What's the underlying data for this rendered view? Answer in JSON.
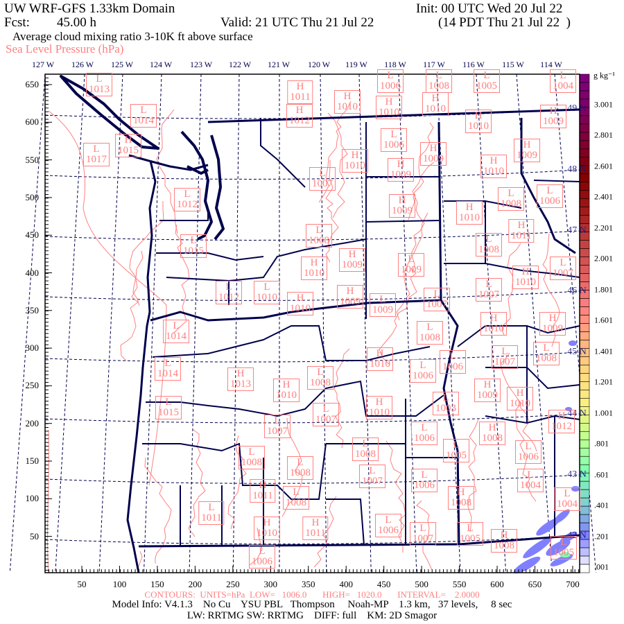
{
  "header": {
    "title": "UW WRF-GFS 1.33km Domain",
    "init": "Init: 00 UTC Wed 20 Jul 22",
    "fcst_label": "Fcst:",
    "fcst_value": "45.00 h",
    "valid": "Valid: 21 UTC Thu 21 Jul 22",
    "local_time": "(14 PDT Thu 21 Jul 22  )",
    "field": "Average cloud mixing ratio 3-10K ft above surface",
    "overlay": "Sea Level Pressure (hPa)"
  },
  "lon_labels": [
    "127 W",
    "126 W",
    "125 W",
    "124 W",
    "123 W",
    "122 W",
    "121 W",
    "120 W",
    "119 W",
    "118 W",
    "117 W",
    "116 W",
    "115 W",
    "114 W"
  ],
  "lat_labels": [
    "49 N",
    "48 N",
    "47 N",
    "46 N",
    "45 N",
    "44 N",
    "43 N",
    "42 N"
  ],
  "x_ticks": [
    "50",
    "100",
    "150",
    "200",
    "250",
    "300",
    "350",
    "400",
    "450",
    "500",
    "550",
    "600",
    "650",
    "700"
  ],
  "y_ticks": [
    "650",
    "600",
    "550",
    "500",
    "450",
    "400",
    "350",
    "300",
    "250",
    "200",
    "150",
    "100",
    "50"
  ],
  "colorbar": {
    "units": "g kg⁻¹",
    "labels": [
      "3.001",
      "2.801",
      "2.601",
      "2.401",
      "2.201",
      "2.001",
      "1.801",
      "1.601",
      "1.401",
      "1.201",
      "1.001",
      ".801",
      ".601",
      ".401",
      ".201",
      ".001"
    ],
    "colors": [
      "#7f007f",
      "#7f0060",
      "#800030",
      "#800000",
      "#a01818",
      "#c04040",
      "#e06060",
      "#ff8080",
      "#ffb080",
      "#ffd880",
      "#f8f080",
      "#c0ff90",
      "#80ffb0",
      "#80d0d0",
      "#8080ff",
      "#ffffff"
    ]
  },
  "precip_color": "#8080ff",
  "contour_color": "#ff7f7f",
  "border_color": "#00004d",
  "pressure_centers": [
    {
      "type": "L",
      "value": "1013"
    },
    {
      "type": "L",
      "value": "1014"
    },
    {
      "type": "H",
      "value": "1015"
    },
    {
      "type": "L",
      "value": "1017"
    },
    {
      "type": "L",
      "value": "1012"
    },
    {
      "type": "L",
      "value": "1015"
    },
    {
      "type": "L",
      "value": "1012"
    },
    {
      "type": "L",
      "value": "1010"
    },
    {
      "type": "H",
      "value": "1010"
    },
    {
      "type": "H",
      "value": "1011"
    },
    {
      "type": "H",
      "value": "1012"
    },
    {
      "type": "H",
      "value": "1010"
    },
    {
      "type": "H",
      "value": "1010"
    },
    {
      "type": "H",
      "value": "1010"
    },
    {
      "type": "L",
      "value": "1005"
    },
    {
      "type": "L",
      "value": "1004"
    },
    {
      "type": "L",
      "value": "1006"
    },
    {
      "type": "L",
      "value": "1008"
    },
    {
      "type": "H",
      "value": "1010"
    },
    {
      "type": "H",
      "value": "1009"
    },
    {
      "type": "L",
      "value": "1006"
    },
    {
      "type": "H",
      "value": "1009"
    },
    {
      "type": "H",
      "value": "1009"
    },
    {
      "type": "H",
      "value": "1010"
    },
    {
      "type": "H",
      "value": "1009"
    },
    {
      "type": "H",
      "value": "1010"
    },
    {
      "type": "L",
      "value": "1007"
    },
    {
      "type": "L",
      "value": "1006"
    },
    {
      "type": "L",
      "value": "1008"
    },
    {
      "type": "H",
      "value": "1009"
    },
    {
      "type": "H",
      "value": "1010"
    },
    {
      "type": "H",
      "value": "1011"
    },
    {
      "type": "L",
      "value": "1008"
    },
    {
      "type": "L",
      "value": "1008"
    },
    {
      "type": "H",
      "value": "1009"
    },
    {
      "type": "L",
      "value": "1009"
    },
    {
      "type": "H",
      "value": "1010"
    },
    {
      "type": "L",
      "value": "1007"
    },
    {
      "type": "H",
      "value": "1010"
    },
    {
      "type": "L",
      "value": "1007"
    },
    {
      "type": "H",
      "value": "1009"
    },
    {
      "type": "L",
      "value": "1009"
    },
    {
      "type": "L",
      "value": "1007"
    },
    {
      "type": "L",
      "value": "1014"
    },
    {
      "type": "L",
      "value": "1014"
    },
    {
      "type": "H",
      "value": "1013"
    },
    {
      "type": "H",
      "value": "1010"
    },
    {
      "type": "L",
      "value": "1015"
    },
    {
      "type": "L",
      "value": "1007"
    },
    {
      "type": "L",
      "value": "1008"
    },
    {
      "type": "L",
      "value": "1008"
    },
    {
      "type": "H",
      "value": "1011"
    },
    {
      "type": "L",
      "value": "1008"
    },
    {
      "type": "L",
      "value": "1011"
    },
    {
      "type": "H",
      "value": "1010"
    },
    {
      "type": "L",
      "value": "1006"
    },
    {
      "type": "H",
      "value": "1010"
    },
    {
      "type": "L",
      "value": "1008"
    },
    {
      "type": "H",
      "value": "1009"
    },
    {
      "type": "H",
      "value": "1010"
    },
    {
      "type": "L",
      "value": "1006"
    },
    {
      "type": "L",
      "value": "1006"
    },
    {
      "type": "L",
      "value": "1007"
    },
    {
      "type": "L",
      "value": "1008"
    },
    {
      "type": "L",
      "value": "1008"
    },
    {
      "type": "H",
      "value": "1009"
    },
    {
      "type": "H",
      "value": "1010"
    },
    {
      "type": "L",
      "value": "1003"
    },
    {
      "type": "H",
      "value": "1010"
    },
    {
      "type": "L",
      "value": "1007"
    },
    {
      "type": "H",
      "value": "1012"
    },
    {
      "type": "L",
      "value": "1006"
    },
    {
      "type": "H",
      "value": "1008"
    },
    {
      "type": "L",
      "value": "1008"
    },
    {
      "type": "L",
      "value": "1005"
    },
    {
      "type": "L",
      "value": "1006"
    },
    {
      "type": "L",
      "value": "1007"
    },
    {
      "type": "L",
      "value": "1006"
    },
    {
      "type": "L",
      "value": "1004"
    },
    {
      "type": "H",
      "value": "1008"
    },
    {
      "type": "L",
      "value": "1004"
    },
    {
      "type": "H",
      "value": "1011"
    },
    {
      "type": "L",
      "value": "1006"
    },
    {
      "type": "L",
      "value": "1007"
    },
    {
      "type": "L",
      "value": "1005"
    },
    {
      "type": "H",
      "value": "1008"
    },
    {
      "type": "L",
      "value": "1005"
    }
  ],
  "footer": {
    "contours": "CONTOURS:  UNITS=hPa  LOW=   1006.0       HIGH=   1020.0       INTERVAL=    2.0000",
    "model_info": "Model Info: V4.1.3    No Cu    YSU PBL   Thompson     Noah-MP    1.3 km,   37 levels,     8 sec",
    "physics": "LW: RRTMG SW: RRTMG    DIFF: full    KM: 2D Smagor"
  }
}
